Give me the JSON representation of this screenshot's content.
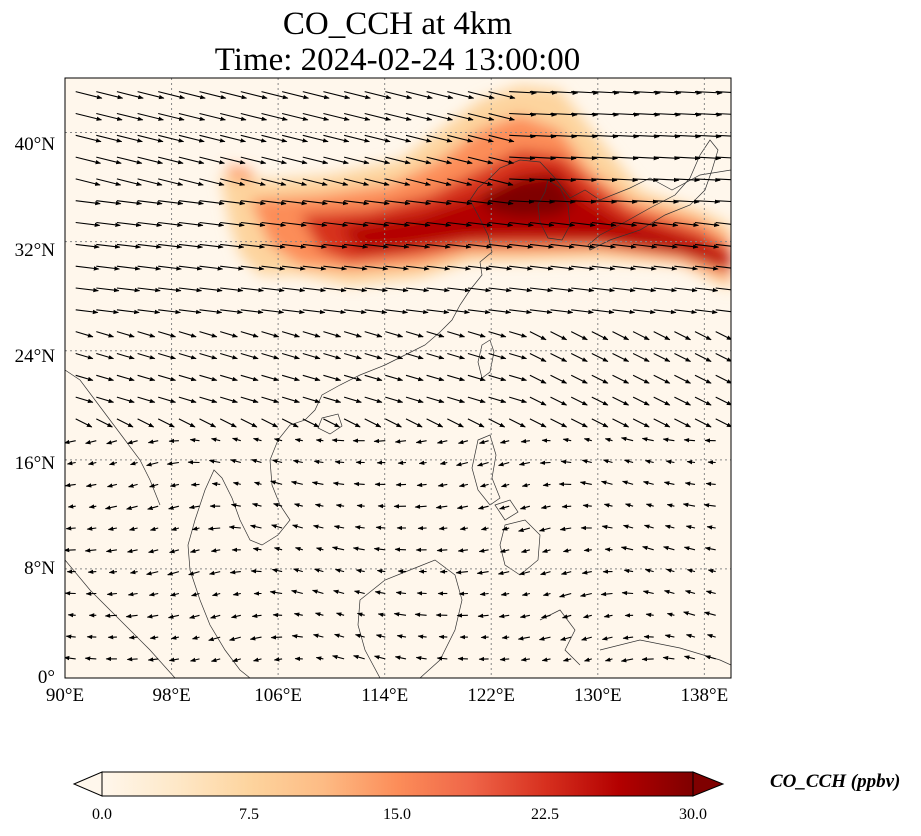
{
  "figure": {
    "title_line1": "CO_CCH at 4km",
    "title_line2": "Time: 2024-02-24 13:00:00"
  },
  "map": {
    "lon_range": [
      90,
      140
    ],
    "lat_range": [
      0,
      44
    ],
    "gridlines": "dotted",
    "x_ticks": [
      "90°E",
      "98°E",
      "106°E",
      "114°E",
      "122°E",
      "130°E",
      "138°E"
    ],
    "y_ticks": [
      "0°",
      "8°N",
      "16°N",
      "24°N",
      "32°N",
      "40°N"
    ]
  },
  "colorbar": {
    "label": "CO_CCH (ppbv)",
    "colormap": "OrRd",
    "range": [
      0,
      30
    ],
    "extend": "both",
    "ticks": [
      "0.0",
      "7.5",
      "15.0",
      "22.5",
      "30.0"
    ],
    "colors": [
      "#fff7ec",
      "#fee8c8",
      "#fdd49e",
      "#fdbb84",
      "#fc8d59",
      "#ef6548",
      "#d7301f",
      "#b30000",
      "#7f0000"
    ]
  }
}
